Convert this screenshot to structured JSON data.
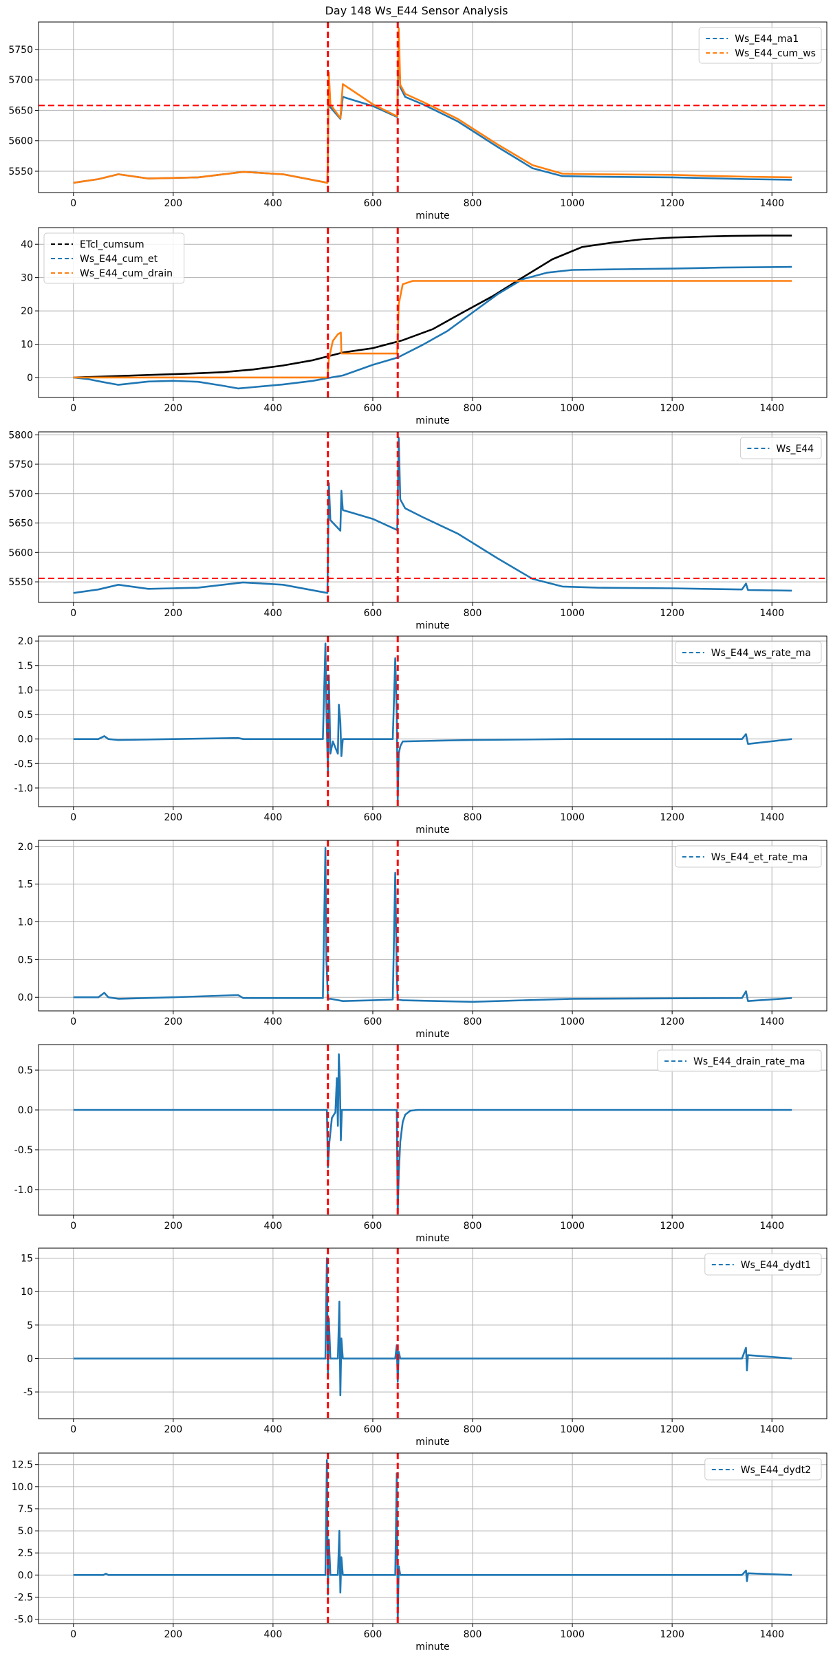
{
  "title": "Day 148 Ws_E44 Sensor Analysis",
  "chart_data": [
    {
      "type": "line",
      "xlabel": "minute",
      "xlim": [
        -70,
        1510
      ],
      "ylim": [
        5515,
        5795
      ],
      "xticks": [
        0,
        200,
        400,
        600,
        800,
        1000,
        1200,
        1400
      ],
      "yticks": [
        5550,
        5600,
        5650,
        5700,
        5750
      ],
      "yticklabels": [
        "5550",
        "5600",
        "5650",
        "5700",
        "5750"
      ],
      "grid": true,
      "legend": "top-right",
      "vlines": [
        510,
        650
      ],
      "hline": 5658,
      "series": [
        {
          "name": "Ws_E44_ma1",
          "color": "#1f77b4",
          "x": [
            0,
            50,
            90,
            150,
            250,
            340,
            420,
            509,
            512,
            515,
            535,
            540,
            600,
            649,
            652,
            655,
            665,
            700,
            770,
            850,
            920,
            980,
            1050,
            1200,
            1350,
            1440
          ],
          "y": [
            5531,
            5537,
            5545,
            5538,
            5540,
            5549,
            5545,
            5531,
            5705,
            5655,
            5636,
            5672,
            5657,
            5639,
            5760,
            5688,
            5672,
            5660,
            5632,
            5590,
            5555,
            5542,
            5541,
            5540,
            5537,
            5536
          ]
        },
        {
          "name": "Ws_E44_cum_ws",
          "color": "#ff7f0e",
          "x": [
            0,
            50,
            90,
            150,
            250,
            340,
            420,
            509,
            512,
            515,
            535,
            540,
            600,
            649,
            652,
            655,
            665,
            700,
            770,
            850,
            920,
            980,
            1050,
            1200,
            1350,
            1440
          ],
          "y": [
            5531,
            5537,
            5545,
            5538,
            5540,
            5549,
            5545,
            5531,
            5712,
            5660,
            5637,
            5693,
            5660,
            5640,
            5785,
            5692,
            5677,
            5664,
            5636,
            5594,
            5560,
            5546,
            5545,
            5544,
            5541,
            5540
          ]
        }
      ]
    },
    {
      "type": "line",
      "xlabel": "minute",
      "xlim": [
        -70,
        1510
      ],
      "ylim": [
        -6,
        45
      ],
      "xticks": [
        0,
        200,
        400,
        600,
        800,
        1000,
        1200,
        1400
      ],
      "yticks": [
        0,
        10,
        20,
        30,
        40
      ],
      "yticklabels": [
        "0",
        "10",
        "20",
        "30",
        "40"
      ],
      "grid": true,
      "legend": "top-left",
      "vlines": [
        510,
        650
      ],
      "series": [
        {
          "name": "ETcl_cumsum",
          "color": "#000000",
          "x": [
            0,
            60,
            120,
            180,
            240,
            300,
            360,
            420,
            480,
            540,
            600,
            660,
            720,
            780,
            840,
            900,
            960,
            1020,
            1080,
            1140,
            1200,
            1260,
            1320,
            1380,
            1440
          ],
          "y": [
            0,
            0.3,
            0.6,
            0.9,
            1.2,
            1.6,
            2.4,
            3.6,
            5.2,
            7.5,
            8.8,
            11.2,
            14.5,
            19.5,
            24.4,
            30.0,
            35.5,
            39.2,
            40.5,
            41.5,
            42.0,
            42.3,
            42.5,
            42.6,
            42.6
          ]
        },
        {
          "name": "Ws_E44_cum_et",
          "color": "#1f77b4",
          "x": [
            0,
            30,
            60,
            90,
            150,
            200,
            250,
            300,
            330,
            360,
            420,
            480,
            509,
            540,
            600,
            650,
            700,
            750,
            800,
            850,
            900,
            950,
            1000,
            1100,
            1200,
            1300,
            1440
          ],
          "y": [
            0,
            -0.5,
            -1.4,
            -2.2,
            -1.2,
            -1.0,
            -1.3,
            -2.5,
            -3.3,
            -2.9,
            -2.1,
            -1.0,
            -0.2,
            0.6,
            3.8,
            6.0,
            9.8,
            14.0,
            19.5,
            25.0,
            29.5,
            31.5,
            32.3,
            32.5,
            32.7,
            33.0,
            33.2
          ]
        },
        {
          "name": "Ws_E44_cum_drain",
          "color": "#ff7f0e",
          "x": [
            0,
            509,
            512,
            520,
            530,
            536,
            537,
            600,
            649,
            652,
            660,
            680,
            800,
            1000,
            1200,
            1440
          ],
          "y": [
            0,
            0,
            5.5,
            11,
            13,
            13.5,
            7.2,
            7.2,
            7.2,
            22,
            28,
            29,
            29,
            29,
            29,
            29
          ]
        }
      ]
    },
    {
      "type": "line",
      "xlabel": "minute",
      "xlim": [
        -70,
        1510
      ],
      "ylim": [
        5515,
        5805
      ],
      "xticks": [
        0,
        200,
        400,
        600,
        800,
        1000,
        1200,
        1400
      ],
      "yticks": [
        5550,
        5600,
        5650,
        5700,
        5750,
        5800
      ],
      "yticklabels": [
        "5550",
        "5600",
        "5650",
        "5700",
        "5750",
        "5800"
      ],
      "grid": true,
      "legend": "top-right",
      "vlines": [
        510,
        650
      ],
      "hline": 5556,
      "series": [
        {
          "name": "Ws_E44",
          "color": "#1f77b4",
          "x": [
            0,
            50,
            90,
            150,
            250,
            340,
            420,
            509,
            512,
            515,
            535,
            537,
            540,
            600,
            649,
            652,
            655,
            665,
            700,
            770,
            850,
            920,
            980,
            1050,
            1200,
            1340,
            1348,
            1352,
            1440
          ],
          "y": [
            5531,
            5537,
            5545,
            5538,
            5540,
            5549,
            5545,
            5531,
            5718,
            5655,
            5637,
            5705,
            5672,
            5657,
            5638,
            5795,
            5690,
            5675,
            5660,
            5632,
            5590,
            5555,
            5542,
            5540,
            5539,
            5537,
            5547,
            5536,
            5535
          ]
        }
      ]
    },
    {
      "type": "line",
      "xlabel": "minute",
      "xlim": [
        -70,
        1510
      ],
      "ylim": [
        -1.38,
        2.1
      ],
      "xticks": [
        0,
        200,
        400,
        600,
        800,
        1000,
        1200,
        1400
      ],
      "yticks": [
        -1.0,
        -0.5,
        0.0,
        0.5,
        1.0,
        1.5,
        2.0
      ],
      "yticklabels": [
        "-1.0",
        "-0.5",
        "0.0",
        "0.5",
        "1.0",
        "1.5",
        "2.0"
      ],
      "grid": true,
      "legend": "top-right",
      "vlines": [
        510,
        650
      ],
      "series": [
        {
          "name": "Ws_E44_ws_rate_ma",
          "color": "#1f77b4",
          "x": [
            0,
            50,
            62,
            70,
            90,
            200,
            330,
            340,
            500,
            505,
            507,
            510,
            512,
            515,
            520,
            530,
            532,
            535,
            537,
            540,
            640,
            645,
            648,
            650,
            652,
            655,
            660,
            700,
            800,
            1000,
            1340,
            1348,
            1352,
            1440
          ],
          "y": [
            0,
            0,
            0.06,
            0,
            -0.02,
            0,
            0.02,
            0,
            0,
            1.95,
            0.6,
            -0.7,
            1.3,
            -0.3,
            -0.05,
            -0.3,
            0.7,
            0.35,
            -0.35,
            0,
            0,
            1.65,
            0.5,
            -1.25,
            -0.3,
            -0.15,
            -0.05,
            -0.04,
            -0.02,
            0,
            0,
            0.1,
            -0.1,
            0
          ]
        }
      ]
    },
    {
      "type": "line",
      "xlabel": "minute",
      "xlim": [
        -70,
        1510
      ],
      "ylim": [
        -0.18,
        2.08
      ],
      "xticks": [
        0,
        200,
        400,
        600,
        800,
        1000,
        1200,
        1400
      ],
      "yticks": [
        0.0,
        0.5,
        1.0,
        1.5,
        2.0
      ],
      "yticklabels": [
        "0.0",
        "0.5",
        "1.0",
        "1.5",
        "2.0"
      ],
      "grid": true,
      "legend": "top-right",
      "vlines": [
        510,
        650
      ],
      "series": [
        {
          "name": "Ws_E44_et_rate_ma",
          "color": "#1f77b4",
          "x": [
            0,
            50,
            62,
            70,
            90,
            200,
            330,
            340,
            500,
            505,
            507,
            510,
            515,
            540,
            600,
            640,
            645,
            648,
            650,
            660,
            800,
            1000,
            1340,
            1348,
            1352,
            1440
          ],
          "y": [
            0,
            0,
            0.06,
            0,
            -0.02,
            0,
            0.03,
            -0.01,
            -0.01,
            1.98,
            0.5,
            -0.02,
            -0.02,
            -0.05,
            -0.04,
            -0.03,
            1.65,
            0.3,
            -0.03,
            -0.04,
            -0.06,
            -0.02,
            -0.01,
            0.08,
            -0.05,
            -0.01
          ]
        }
      ]
    },
    {
      "type": "line",
      "xlabel": "minute",
      "xlim": [
        -70,
        1510
      ],
      "ylim": [
        -1.32,
        0.82
      ],
      "xticks": [
        0,
        200,
        400,
        600,
        800,
        1000,
        1200,
        1400
      ],
      "yticks": [
        -1.0,
        -0.5,
        0.0,
        0.5
      ],
      "yticklabels": [
        "-1.0",
        "-0.5",
        "0.0",
        "0.5"
      ],
      "grid": true,
      "legend": "top-right",
      "vlines": [
        510,
        650
      ],
      "series": [
        {
          "name": "Ws_E44_drain_rate_ma",
          "color": "#1f77b4",
          "x": [
            0,
            508,
            510,
            513,
            518,
            525,
            528,
            530,
            532,
            534,
            536,
            538,
            545,
            648,
            650,
            652,
            655,
            660,
            665,
            675,
            690,
            1440
          ],
          "y": [
            0,
            0,
            -0.72,
            -0.4,
            -0.1,
            -0.03,
            0.4,
            -0.2,
            0.7,
            0.35,
            -0.38,
            0,
            0,
            0,
            -1.3,
            -0.8,
            -0.4,
            -0.15,
            -0.06,
            -0.01,
            0,
            0
          ]
        }
      ]
    },
    {
      "type": "line",
      "xlabel": "minute",
      "xlim": [
        -70,
        1510
      ],
      "ylim": [
        -9,
        16.5
      ],
      "xticks": [
        0,
        200,
        400,
        600,
        800,
        1000,
        1200,
        1400
      ],
      "yticks": [
        -5,
        0,
        5,
        10,
        15
      ],
      "yticklabels": [
        "-5",
        "0",
        "5",
        "10",
        "15"
      ],
      "grid": true,
      "legend": "top-right",
      "vlines": [
        510,
        650
      ],
      "series": [
        {
          "name": "Ws_E44_dydt1",
          "color": "#1f77b4",
          "x": [
            0,
            505,
            508,
            510,
            512,
            515,
            530,
            533,
            535,
            537,
            540,
            645,
            648,
            650,
            652,
            655,
            1340,
            1348,
            1350,
            1352,
            1440
          ],
          "y": [
            0,
            0,
            15,
            -3,
            6,
            0,
            0,
            8.5,
            -5.5,
            3,
            0,
            0,
            2,
            -3.5,
            1,
            0,
            0,
            1.6,
            -1.8,
            0.5,
            0
          ]
        }
      ]
    },
    {
      "type": "line",
      "xlabel": "minute",
      "xlim": [
        -70,
        1510
      ],
      "ylim": [
        -5.5,
        13.8
      ],
      "xticks": [
        0,
        200,
        400,
        600,
        800,
        1000,
        1200,
        1400
      ],
      "yticks": [
        -5.0,
        -2.5,
        0.0,
        2.5,
        5.0,
        7.5,
        10.0,
        12.5
      ],
      "yticklabels": [
        "-5.0",
        "-2.5",
        "0.0",
        "2.5",
        "5.0",
        "7.5",
        "10.0",
        "12.5"
      ],
      "grid": true,
      "legend": "top-right",
      "vlines": [
        510,
        650
      ],
      "series": [
        {
          "name": "Ws_E44_dydt2",
          "color": "#1f77b4",
          "x": [
            0,
            60,
            65,
            70,
            505,
            508,
            510,
            512,
            515,
            530,
            533,
            535,
            537,
            540,
            645,
            648,
            650,
            652,
            655,
            1340,
            1348,
            1350,
            1352,
            1440
          ],
          "y": [
            0,
            0,
            0.15,
            0,
            0,
            13,
            -2.2,
            4,
            0,
            0,
            5,
            -2,
            2,
            0,
            0,
            11.5,
            -5.3,
            1,
            0,
            0,
            0.5,
            -0.7,
            0.2,
            0
          ]
        }
      ]
    }
  ]
}
